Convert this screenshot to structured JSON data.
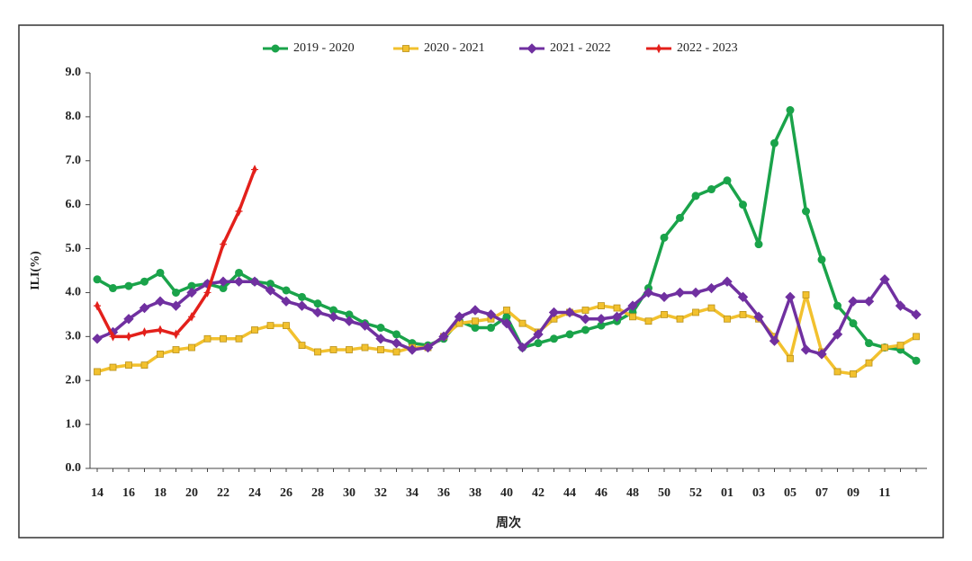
{
  "chart_data": {
    "type": "line",
    "ylabel": "ILI(%)",
    "xlabel": "周次",
    "categories": [
      "14",
      null,
      "16",
      null,
      "18",
      null,
      "20",
      null,
      "22",
      null,
      "24",
      null,
      "26",
      null,
      "28",
      null,
      "30",
      null,
      "32",
      null,
      "34",
      null,
      "36",
      null,
      "38",
      null,
      "40",
      null,
      "42",
      null,
      "44",
      null,
      "46",
      null,
      "48",
      null,
      "50",
      null,
      "52",
      null,
      "01",
      null,
      "03",
      null,
      "05",
      null,
      "07",
      null,
      "09",
      null,
      "11",
      null,
      null
    ],
    "ylim": [
      0,
      9
    ],
    "yticks": [
      {
        "value": 0,
        "label": "0.0"
      },
      {
        "value": 1,
        "label": "1.0"
      },
      {
        "value": 2,
        "label": "2.0"
      },
      {
        "value": 3,
        "label": "3.0"
      },
      {
        "value": 4,
        "label": "4.0"
      },
      {
        "value": 5,
        "label": "5.0"
      },
      {
        "value": 6,
        "label": "6.0"
      },
      {
        "value": 7,
        "label": "7.0"
      },
      {
        "value": 8,
        "label": "8.0"
      },
      {
        "value": 9,
        "label": "9.0"
      }
    ],
    "legend": "top",
    "series": [
      {
        "name": "2019 - 2020",
        "color": "#1aa34a",
        "marker": "circle",
        "values": [
          4.3,
          4.1,
          4.15,
          4.25,
          4.45,
          4.0,
          4.15,
          4.2,
          4.1,
          4.45,
          4.25,
          4.2,
          4.05,
          3.9,
          3.75,
          3.6,
          3.5,
          3.3,
          3.2,
          3.05,
          2.85,
          2.8,
          2.95,
          3.35,
          3.2,
          3.2,
          3.45,
          2.75,
          2.85,
          2.95,
          3.05,
          3.15,
          3.25,
          3.35,
          3.55,
          4.1,
          5.25,
          5.7,
          6.2,
          6.35,
          6.55,
          6.0,
          5.1,
          7.4,
          8.15,
          5.85,
          4.75,
          3.7,
          3.3,
          2.85,
          2.75,
          2.7,
          2.45
        ]
      },
      {
        "name": "2020 - 2021",
        "color": "#f2c12e",
        "marker": "square",
        "values": [
          2.2,
          2.3,
          2.35,
          2.35,
          2.6,
          2.7,
          2.75,
          2.95,
          2.95,
          2.95,
          3.15,
          3.25,
          3.25,
          2.8,
          2.65,
          2.7,
          2.7,
          2.75,
          2.7,
          2.65,
          2.75,
          2.75,
          3.0,
          3.3,
          3.35,
          3.4,
          3.6,
          3.3,
          3.1,
          3.4,
          3.55,
          3.6,
          3.7,
          3.65,
          3.45,
          3.35,
          3.5,
          3.4,
          3.55,
          3.65,
          3.4,
          3.5,
          3.4,
          3.0,
          2.5,
          3.95,
          2.65,
          2.2,
          2.15,
          2.4,
          2.75,
          2.8,
          3.0
        ]
      },
      {
        "name": "2021 - 2022",
        "color": "#7030a0",
        "marker": "diamond",
        "values": [
          2.95,
          3.1,
          3.4,
          3.65,
          3.8,
          3.7,
          4.0,
          4.2,
          4.25,
          4.25,
          4.25,
          4.05,
          3.8,
          3.7,
          3.55,
          3.45,
          3.35,
          3.25,
          2.95,
          2.85,
          2.7,
          2.75,
          3.0,
          3.45,
          3.6,
          3.5,
          3.3,
          2.75,
          3.05,
          3.55,
          3.55,
          3.4,
          3.4,
          3.45,
          3.7,
          4.0,
          3.9,
          4.0,
          4.0,
          4.1,
          4.25,
          3.9,
          3.45,
          2.9,
          3.9,
          2.7,
          2.6,
          3.05,
          3.8,
          3.8,
          4.3,
          3.7,
          3.5
        ]
      },
      {
        "name": "2022 - 2023",
        "color": "#e3201b",
        "marker": "plus",
        "values": [
          3.7,
          3.0,
          3.0,
          3.1,
          3.15,
          3.05,
          3.45,
          4.0,
          5.1,
          5.85,
          6.8,
          null,
          null,
          null,
          null,
          null,
          null,
          null,
          null,
          null,
          null,
          null,
          null,
          null,
          null,
          null,
          null,
          null,
          null,
          null,
          null,
          null,
          null,
          null,
          null,
          null,
          null,
          null,
          null,
          null,
          null,
          null,
          null,
          null,
          null,
          null,
          null,
          null,
          null,
          null,
          null,
          null,
          null
        ]
      }
    ]
  }
}
